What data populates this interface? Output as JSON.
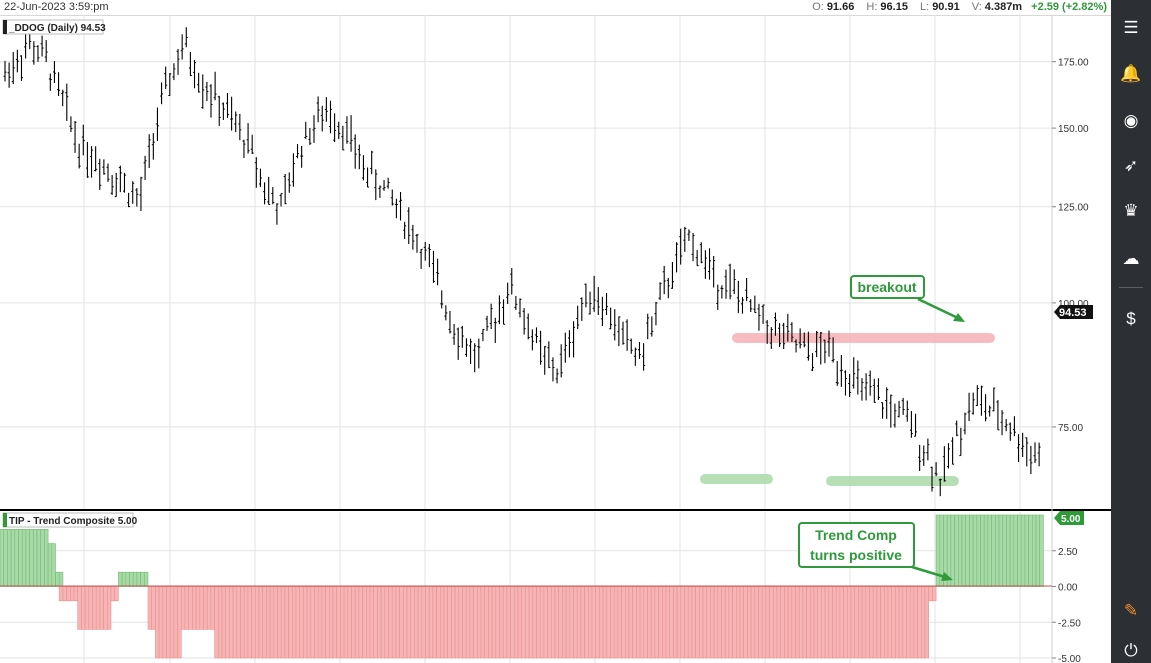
{
  "header": {
    "date": "22-Jun-2023 3:59:pm",
    "open_label": "O:",
    "open": "91.66",
    "high_label": "H:",
    "high": "96.15",
    "low_label": "L:",
    "low": "90.91",
    "volume_label": "V:",
    "volume": "4.387m",
    "change": "+2.59 (+2.82%)"
  },
  "sidebar": {
    "icons": [
      "sliders-icon",
      "bell-icon",
      "globe-icon",
      "rocket-icon",
      "trophy-icon",
      "cloud-icon",
      "dollar-document-icon",
      "pen-icon",
      "plug-icon"
    ]
  },
  "colors": {
    "bull": "#7fc77f",
    "bear": "#f08a8a",
    "resistance": "#f5b0b5",
    "support": "#a9d9a9",
    "annotation": "#2e9a3a",
    "price": "#000000"
  },
  "chart_data": [
    {
      "type": "bar",
      "subtype": "ohlc",
      "legend": "_DDOG (Daily) 94.53",
      "last_price_label": "94.53",
      "ylim": [
        62,
        195
      ],
      "log_scale": true,
      "y_ticks": [
        175,
        150,
        125,
        100,
        75
      ],
      "y_tick_labels": [
        "175.00",
        "150.00",
        "125.00",
        "100.00",
        "75.00"
      ],
      "grid": true,
      "bars_count": 252,
      "price_path": [
        [
          0,
          170
        ],
        [
          6,
          182
        ],
        [
          10,
          176
        ],
        [
          14,
          160
        ],
        [
          18,
          145
        ],
        [
          24,
          138
        ],
        [
          29,
          132
        ],
        [
          33,
          126
        ],
        [
          37,
          150
        ],
        [
          40,
          166
        ],
        [
          44,
          182
        ],
        [
          48,
          168
        ],
        [
          52,
          160
        ],
        [
          56,
          152
        ],
        [
          60,
          144
        ],
        [
          64,
          130
        ],
        [
          68,
          124
        ],
        [
          72,
          142
        ],
        [
          76,
          152
        ],
        [
          80,
          156
        ],
        [
          84,
          148
        ],
        [
          88,
          137
        ],
        [
          92,
          132
        ],
        [
          96,
          126
        ],
        [
          100,
          118
        ],
        [
          104,
          110
        ],
        [
          108,
          100
        ],
        [
          112,
          92
        ],
        [
          116,
          88
        ],
        [
          120,
          96
        ],
        [
          124,
          104
        ],
        [
          128,
          96
        ],
        [
          132,
          88
        ],
        [
          136,
          85
        ],
        [
          140,
          95
        ],
        [
          144,
          104
        ],
        [
          148,
          98
        ],
        [
          152,
          92
        ],
        [
          156,
          88
        ],
        [
          160,
          98
        ],
        [
          164,
          108
        ],
        [
          168,
          116
        ],
        [
          171,
          112
        ],
        [
          174,
          106
        ],
        [
          178,
          104
        ],
        [
          182,
          100
        ],
        [
          186,
          96
        ],
        [
          190,
          93
        ],
        [
          194,
          91
        ],
        [
          198,
          89
        ],
        [
          202,
          90
        ],
        [
          206,
          86
        ],
        [
          210,
          82
        ],
        [
          214,
          80
        ],
        [
          218,
          78
        ],
        [
          222,
          76
        ],
        [
          226,
          71
        ],
        [
          230,
          66
        ],
        [
          234,
          74
        ],
        [
          238,
          80
        ],
        [
          242,
          78
        ],
        [
          246,
          76
        ],
        [
          250,
          72
        ],
        [
          254,
          70
        ]
      ],
      "annotations": [
        {
          "text": "breakout",
          "style": "green-box-with-arrow"
        }
      ],
      "resistance_level": 91,
      "support_level": 64
    },
    {
      "type": "bar",
      "subtype": "histogram",
      "legend": "TIP - Trend Composite 5.00",
      "last_value_label": "5.00",
      "ylim": [
        -5,
        5
      ],
      "y_ticks": [
        2.5,
        0,
        -2.5,
        -5
      ],
      "y_tick_labels": [
        "2.50",
        "0.00",
        "-2.50",
        "-5.00"
      ],
      "segments": [
        {
          "from": 0,
          "to": 12,
          "value": 4
        },
        {
          "from": 13,
          "to": 14,
          "value": 3
        },
        {
          "from": 15,
          "to": 16,
          "value": 1
        },
        {
          "from": 16,
          "to": 20,
          "value": -1
        },
        {
          "from": 21,
          "to": 29,
          "value": -3
        },
        {
          "from": 30,
          "to": 31,
          "value": -1
        },
        {
          "from": 32,
          "to": 39,
          "value": 1
        },
        {
          "from": 40,
          "to": 41,
          "value": -3
        },
        {
          "from": 42,
          "to": 48,
          "value": -5
        },
        {
          "from": 49,
          "to": 57,
          "value": -3
        },
        {
          "from": 58,
          "to": 250,
          "value": -5
        },
        {
          "from": 251,
          "to": 252,
          "value": -1
        },
        {
          "from": 253,
          "to": 281,
          "value": 5
        }
      ],
      "annotations": [
        {
          "text_line1": "Trend Comp",
          "text_line2": "turns positive",
          "style": "green-box-with-arrow"
        }
      ]
    }
  ]
}
